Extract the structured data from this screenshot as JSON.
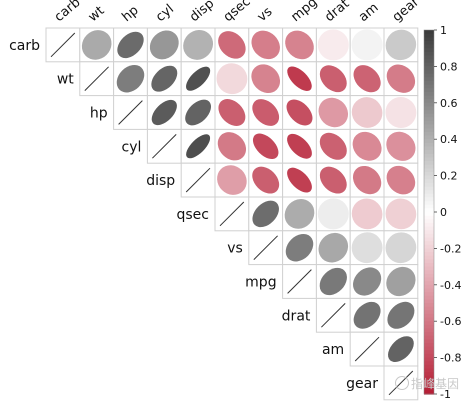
{
  "chart_data": {
    "type": "heatmap",
    "style": "correlation-ellipse-upper-triangle",
    "variables": [
      "carb",
      "wt",
      "hp",
      "cyl",
      "disp",
      "qsec",
      "vs",
      "mpg",
      "drat",
      "am",
      "gear"
    ],
    "matrix": [
      [
        1.0,
        0.43,
        0.75,
        0.53,
        0.39,
        -0.66,
        -0.57,
        -0.55,
        -0.09,
        0.06,
        0.27
      ],
      [
        0.43,
        1.0,
        0.66,
        0.78,
        0.89,
        -0.17,
        -0.55,
        -0.87,
        -0.71,
        -0.69,
        -0.58
      ],
      [
        0.75,
        0.66,
        1.0,
        0.83,
        0.79,
        -0.71,
        -0.72,
        -0.78,
        -0.45,
        -0.24,
        -0.13
      ],
      [
        0.53,
        0.78,
        0.83,
        1.0,
        0.9,
        -0.59,
        -0.81,
        -0.85,
        -0.7,
        -0.52,
        -0.49
      ],
      [
        0.39,
        0.89,
        0.79,
        0.9,
        1.0,
        -0.43,
        -0.71,
        -0.85,
        -0.71,
        -0.59,
        -0.56
      ],
      [
        -0.66,
        -0.17,
        -0.71,
        -0.59,
        -0.43,
        1.0,
        0.74,
        0.42,
        0.09,
        -0.23,
        -0.21
      ],
      [
        -0.57,
        -0.55,
        -0.72,
        -0.81,
        -0.71,
        0.74,
        1.0,
        0.66,
        0.44,
        0.17,
        0.21
      ],
      [
        -0.55,
        -0.87,
        -0.78,
        -0.85,
        -0.85,
        0.42,
        0.66,
        1.0,
        0.68,
        0.6,
        0.48
      ],
      [
        -0.09,
        -0.71,
        -0.45,
        -0.7,
        -0.71,
        0.09,
        0.44,
        0.68,
        1.0,
        0.71,
        0.7
      ],
      [
        0.06,
        -0.69,
        -0.24,
        -0.52,
        -0.59,
        -0.23,
        0.17,
        0.6,
        0.71,
        1.0,
        0.79
      ],
      [
        0.27,
        -0.58,
        -0.13,
        -0.49,
        -0.56,
        -0.21,
        0.21,
        0.48,
        0.7,
        0.79,
        1.0
      ]
    ],
    "colorbar": {
      "ticks": [
        1,
        0.8,
        0.6,
        0.4,
        0.2,
        0,
        -0.2,
        -0.4,
        -0.6,
        -0.8,
        -1
      ],
      "tick_labels": [
        "1",
        "0.8",
        "0.6",
        "0.4",
        "0.2",
        "0",
        "-0.2",
        "-0.4",
        "-0.6",
        "-0.8",
        "-1"
      ],
      "range": [
        -1,
        1
      ],
      "positive_color": "#3a3a3a",
      "neutral_color": "#ffffff",
      "negative_color": "#b51d34"
    },
    "grid": true,
    "legend_position": "right"
  },
  "watermark": {
    "text": "指峰基因"
  }
}
